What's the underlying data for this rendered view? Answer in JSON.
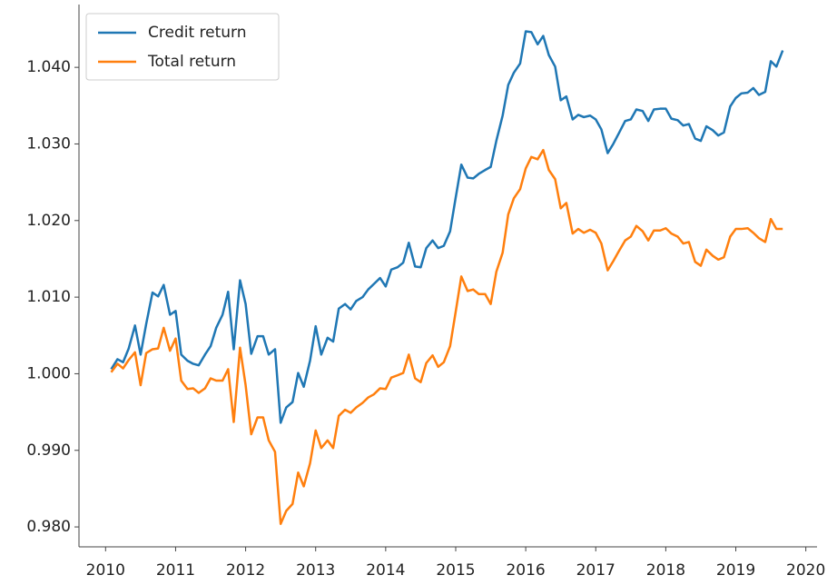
{
  "chart_data": {
    "type": "line",
    "x": [
      2010.08,
      2010.17,
      2010.25,
      2010.33,
      2010.42,
      2010.5,
      2010.58,
      2010.67,
      2010.75,
      2010.83,
      2010.92,
      2011.0,
      2011.08,
      2011.17,
      2011.25,
      2011.33,
      2011.42,
      2011.5,
      2011.58,
      2011.67,
      2011.75,
      2011.83,
      2011.92,
      2012.0,
      2012.08,
      2012.17,
      2012.25,
      2012.33,
      2012.42,
      2012.5,
      2012.58,
      2012.67,
      2012.75,
      2012.83,
      2012.92,
      2013.0,
      2013.08,
      2013.17,
      2013.25,
      2013.33,
      2013.42,
      2013.5,
      2013.58,
      2013.67,
      2013.75,
      2013.83,
      2013.92,
      2014.0,
      2014.08,
      2014.17,
      2014.25,
      2014.33,
      2014.42,
      2014.5,
      2014.58,
      2014.67,
      2014.75,
      2014.83,
      2014.92,
      2015.0,
      2015.08,
      2015.17,
      2015.25,
      2015.33,
      2015.42,
      2015.5,
      2015.58,
      2015.67,
      2015.75,
      2015.83,
      2015.92,
      2016.0,
      2016.08,
      2016.17,
      2016.25,
      2016.33,
      2016.42,
      2016.5,
      2016.58,
      2016.67,
      2016.75,
      2016.83,
      2016.92,
      2017.0,
      2017.08,
      2017.17,
      2017.25,
      2017.33,
      2017.42,
      2017.5,
      2017.58,
      2017.67,
      2017.75,
      2017.83,
      2017.92,
      2018.0,
      2018.08,
      2018.17,
      2018.25,
      2018.33,
      2018.42,
      2018.5,
      2018.58,
      2018.67,
      2018.75,
      2018.83,
      2018.92,
      2019.0,
      2019.08,
      2019.17,
      2019.25,
      2019.33,
      2019.42,
      2019.5,
      2019.58,
      2019.67
    ],
    "series": [
      {
        "name": "Credit return",
        "color": "#1f77b4",
        "values": [
          1.0006,
          1.0019,
          1.0015,
          1.0033,
          1.0063,
          1.0025,
          1.0065,
          1.0106,
          1.0101,
          1.0116,
          1.0077,
          1.0082,
          1.0025,
          1.0017,
          1.0013,
          1.0011,
          1.0025,
          1.0036,
          1.006,
          1.0077,
          1.0107,
          1.0032,
          1.0122,
          1.0091,
          1.0026,
          1.0049,
          1.0049,
          1.0025,
          1.0032,
          0.9936,
          0.9956,
          0.9963,
          1.0001,
          0.9983,
          1.0017,
          1.0062,
          1.0025,
          1.0047,
          1.0042,
          1.0085,
          1.0091,
          1.0084,
          1.0095,
          1.01,
          1.011,
          1.0117,
          1.0125,
          1.0114,
          1.0136,
          1.0139,
          1.0145,
          1.0171,
          1.014,
          1.0139,
          1.0164,
          1.0174,
          1.0164,
          1.0167,
          1.0186,
          1.023,
          1.0273,
          1.0256,
          1.0255,
          1.0261,
          1.0266,
          1.027,
          1.0304,
          1.0337,
          1.0377,
          1.0393,
          1.0405,
          1.0447,
          1.0446,
          1.043,
          1.0441,
          1.0416,
          1.0401,
          1.0357,
          1.0362,
          1.0332,
          1.0338,
          1.0335,
          1.0337,
          1.0332,
          1.0319,
          1.0288,
          1.03,
          1.0314,
          1.033,
          1.0332,
          1.0345,
          1.0343,
          1.033,
          1.0345,
          1.0346,
          1.0346,
          1.0333,
          1.0331,
          1.0324,
          1.0326,
          1.0307,
          1.0304,
          1.0323,
          1.0318,
          1.0311,
          1.0315,
          1.0349,
          1.036,
          1.0366,
          1.0367,
          1.0373,
          1.0364,
          1.0368,
          1.0408,
          1.0401,
          1.0422
        ]
      },
      {
        "name": "Total return",
        "color": "#ff7f0e",
        "values": [
          1.0002,
          1.0013,
          1.0007,
          1.0018,
          1.0028,
          0.9985,
          1.0027,
          1.0032,
          1.0033,
          1.006,
          1.003,
          1.0046,
          0.9991,
          0.998,
          0.9981,
          0.9975,
          0.9981,
          0.9994,
          0.9991,
          0.9991,
          1.0006,
          0.9937,
          1.0034,
          0.9985,
          0.9921,
          0.9943,
          0.9943,
          0.9913,
          0.9898,
          0.9804,
          0.9821,
          0.983,
          0.9871,
          0.9853,
          0.9883,
          0.9926,
          0.9903,
          0.9913,
          0.9903,
          0.9945,
          0.9953,
          0.9949,
          0.9956,
          0.9962,
          0.9969,
          0.9973,
          0.9981,
          0.998,
          0.9995,
          0.9998,
          1.0001,
          1.0025,
          0.9994,
          0.9989,
          1.0014,
          1.0024,
          1.0009,
          1.0015,
          1.0036,
          1.0081,
          1.0127,
          1.0108,
          1.011,
          1.0104,
          1.0104,
          1.0091,
          1.0133,
          1.0158,
          1.0208,
          1.0229,
          1.0241,
          1.0268,
          1.0283,
          1.028,
          1.0292,
          1.0266,
          1.0254,
          1.0216,
          1.0223,
          1.0183,
          1.0189,
          1.0184,
          1.0188,
          1.0184,
          1.017,
          1.0135,
          1.0147,
          1.016,
          1.0174,
          1.0179,
          1.0193,
          1.0186,
          1.0174,
          1.0187,
          1.0187,
          1.019,
          1.0183,
          1.0179,
          1.017,
          1.0172,
          1.0146,
          1.0141,
          1.0162,
          1.0154,
          1.0149,
          1.0152,
          1.0179,
          1.0189,
          1.0189,
          1.019,
          1.0184,
          1.0177,
          1.0172,
          1.0202,
          1.0189,
          1.0189
        ]
      }
    ],
    "xlim": [
      2009.62,
      2020.16
    ],
    "ylim": [
      0.9774,
      1.0482
    ],
    "xticks": [
      2010,
      2011,
      2012,
      2013,
      2014,
      2015,
      2016,
      2017,
      2018,
      2019,
      2020
    ],
    "yticks": [
      {
        "value": 0.98,
        "label": "0.980"
      },
      {
        "value": 0.99,
        "label": "0.990"
      },
      {
        "value": 1.0,
        "label": "1.000"
      },
      {
        "value": 1.01,
        "label": "1.010"
      },
      {
        "value": 1.02,
        "label": "1.020"
      },
      {
        "value": 1.03,
        "label": "1.030"
      },
      {
        "value": 1.04,
        "label": "1.040"
      }
    ],
    "legend": "upper left"
  }
}
